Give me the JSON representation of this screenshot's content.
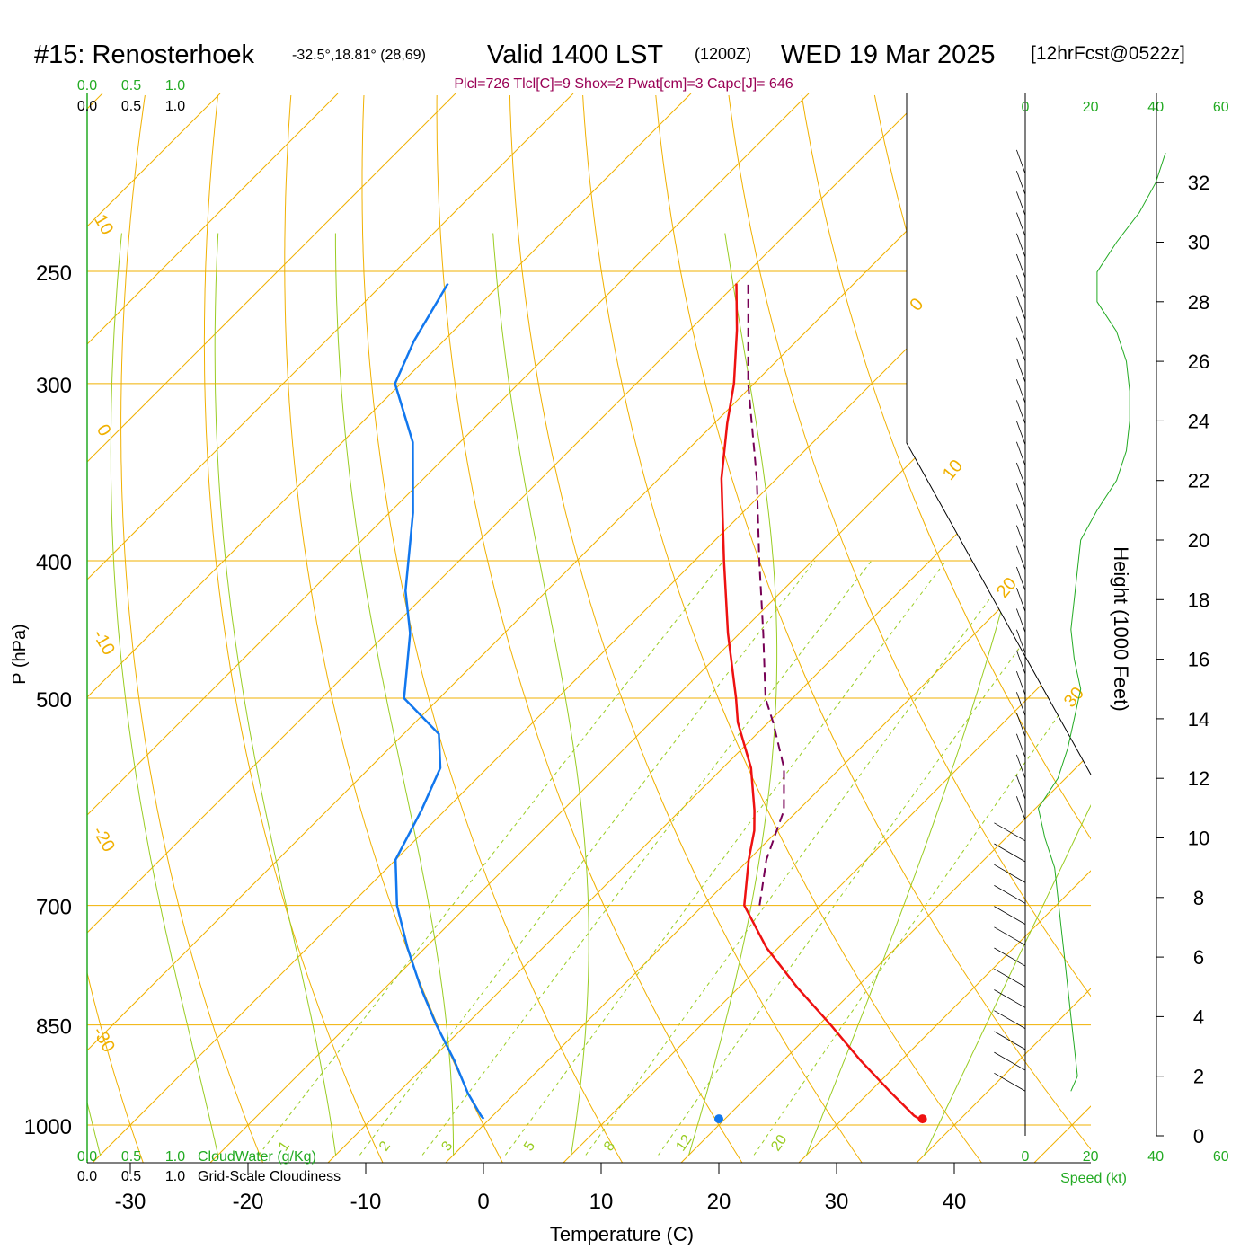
{
  "header": {
    "station": "#15: Renosterhoek",
    "coords": "-32.5°,18.81° (28,69)",
    "valid": "Valid 1400 LST",
    "utc": "(1200Z)",
    "date": "WED 19 Mar 2025",
    "forecast": "[12hrFcst@0522z]",
    "indices": "Plcl=726 Tlcl[C]=9 Shox=2 Pwat[cm]=3 Cape[J]= 646"
  },
  "colors": {
    "temperature": "#ee1111",
    "dewpoint": "#1177ee",
    "parcel": "#770055",
    "isobar_isotherm": "#f0b000",
    "adiabat": "#99cc22",
    "cloud_axis": "#22aa22",
    "indices_text": "#990055"
  },
  "chart_data": {
    "type": "skew-t",
    "title": "#15: Renosterhoek",
    "xlabel": "Temperature (C)",
    "ylabel": "P (hPa)",
    "xticks": [
      "-30",
      "-20",
      "-10",
      "0",
      "10",
      "20",
      "30",
      "40"
    ],
    "xlim": [
      -34,
      40
    ],
    "pressure_levels": [
      1000,
      850,
      700,
      500,
      400,
      300,
      250
    ],
    "pressure_labels": [
      "1000",
      "850",
      "700",
      "500",
      "400",
      "300",
      "250"
    ],
    "isotherm_labels": [
      "10",
      "0",
      "-10",
      "-20",
      "-30",
      "0",
      "10",
      "20",
      "30"
    ],
    "mixing_ratio_labels": [
      "1",
      "2",
      "3",
      "5",
      "8",
      "12",
      "20"
    ],
    "cloud_axis_top": {
      "values": [
        "0.0",
        "0.5",
        "1.0"
      ],
      "label": "CloudWater (g/Kg)"
    },
    "cloud_axis_bottom": {
      "values": [
        "0.0",
        "0.5",
        "1.0"
      ],
      "label": "Grid-Scale Cloudiness"
    },
    "temperature": {
      "p": [
        990,
        985,
        950,
        900,
        850,
        800,
        750,
        700,
        650,
        620,
        600,
        560,
        520,
        500,
        450,
        400,
        350,
        320,
        300,
        275,
        255
      ],
      "t": [
        36.5,
        35.8,
        32.0,
        26.5,
        21.0,
        15.0,
        9.0,
        3.5,
        0.0,
        -2.0,
        -3.7,
        -7.6,
        -12.6,
        -14.8,
        -21.0,
        -27.5,
        -34.7,
        -38.9,
        -41.7,
        -46.0,
        -50.0
      ]
    },
    "dewpoint": {
      "p": [
        990,
        985,
        950,
        900,
        850,
        800,
        750,
        700,
        650,
        600,
        560,
        530,
        500,
        450,
        420,
        370,
        330,
        300,
        280,
        255
      ],
      "t": [
        -0.5,
        -1.0,
        -4.0,
        -8.0,
        -12.5,
        -17.0,
        -21.5,
        -26.0,
        -30.0,
        -32.0,
        -34.0,
        -37.0,
        -43.0,
        -48.0,
        -52.0,
        -58.0,
        -64.0,
        -70.5,
        -72.5,
        -74.5
      ]
    },
    "parcel": {
      "p": [
        700,
        650,
        600,
        560,
        520,
        500,
        450,
        400,
        350,
        300,
        270,
        255
      ],
      "t": [
        4.8,
        1.5,
        -1.2,
        -4.8,
        -9.6,
        -12.3,
        -18.0,
        -24.5,
        -31.7,
        -40.5,
        -46.0,
        -49.0
      ]
    },
    "surface_temperature": 37.3,
    "surface_dewpoint": 20.0,
    "height_axis": {
      "label": "Height (1000 Feet)",
      "ticks": [
        "0",
        "2",
        "4",
        "6",
        "8",
        "10",
        "12",
        "14",
        "16",
        "18",
        "20",
        "22",
        "24",
        "26",
        "28",
        "30",
        "32"
      ]
    },
    "wind_speed": {
      "label": "Speed (kt)",
      "ticks": [
        "0",
        "20",
        "40",
        "60"
      ],
      "height_kft": [
        1.5,
        2,
        3,
        4,
        5,
        6,
        7,
        8,
        9,
        10,
        11,
        12,
        13,
        14,
        15,
        16,
        17,
        18,
        19,
        20,
        21,
        22,
        23,
        24,
        25,
        26,
        27,
        28,
        29,
        30,
        31,
        32,
        33
      ],
      "speed_kt": [
        14,
        16,
        15,
        14,
        13,
        12,
        11,
        10,
        9,
        6,
        4,
        10,
        13,
        15,
        17,
        15,
        14,
        15,
        16,
        17,
        22,
        28,
        31,
        32,
        32,
        31,
        28,
        22,
        22,
        28,
        35,
        40,
        43
      ]
    }
  }
}
